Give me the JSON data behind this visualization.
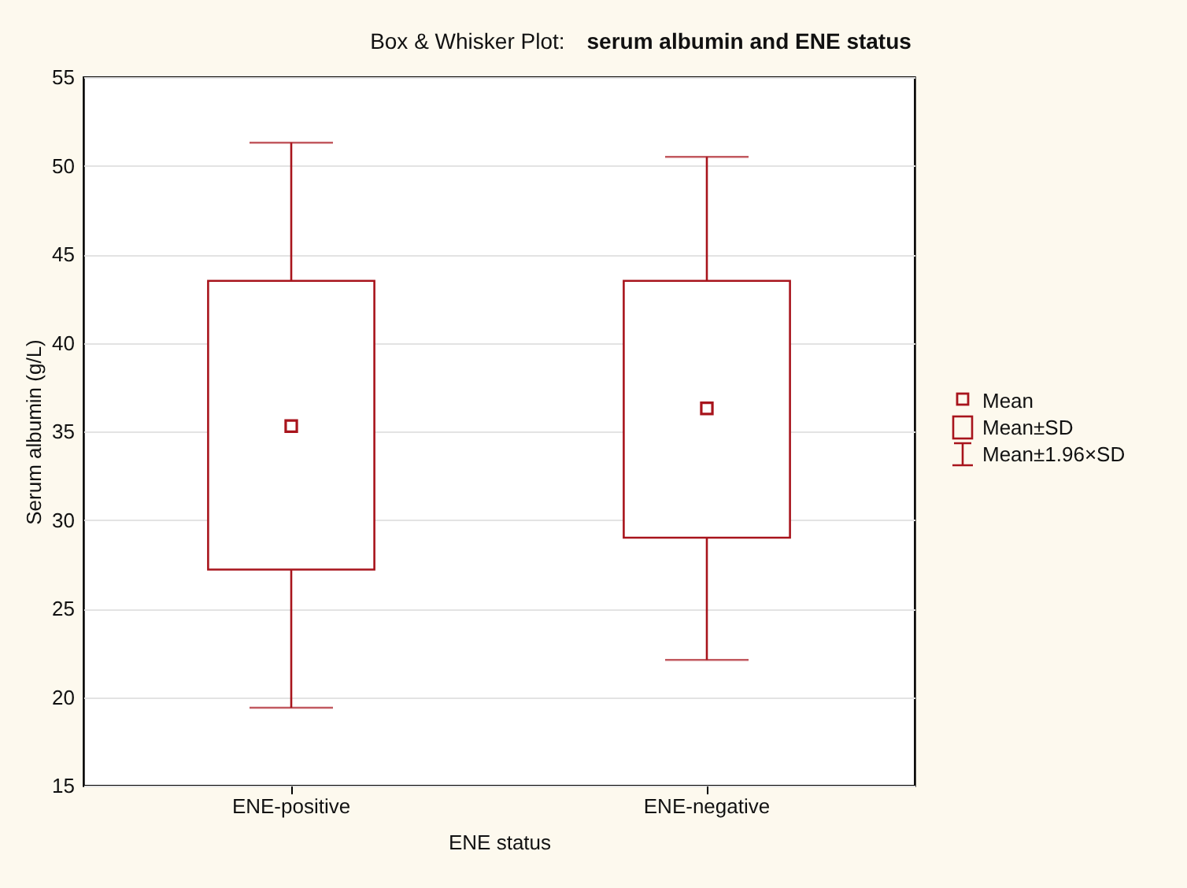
{
  "chart_data": {
    "type": "box",
    "title": "Box & Whisker Plot:",
    "subtitle": "serum albumin and ENE status",
    "xlabel": "ENE status",
    "ylabel": "Serum albumin (g/L)",
    "categories": [
      "ENE-positive",
      "ENE-negative"
    ],
    "boxes": [
      {
        "low": 19.4,
        "q1": 27.2,
        "median": null,
        "q3": 43.5,
        "high": 51.3,
        "mean": 35.3
      },
      {
        "low": 22.1,
        "q1": 29.0,
        "median": null,
        "q3": 43.5,
        "high": 50.5,
        "mean": 36.3
      }
    ],
    "color": "#a8141c",
    "ylim": [
      15,
      55
    ],
    "yticks": [
      15,
      20,
      25,
      30,
      35,
      40,
      45,
      50,
      55
    ],
    "grid": "y",
    "annotations": [
      "Mean",
      "Mean±SD",
      "Mean±1.96×SD"
    ]
  }
}
